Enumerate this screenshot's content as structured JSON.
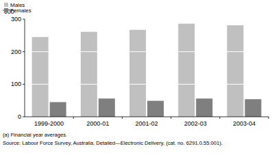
{
  "chart_data": {
    "type": "bar",
    "y_label": "'000",
    "categories": [
      "1999-2000",
      "2000-01",
      "2001-02",
      "2002-03",
      "2003-04"
    ],
    "series": [
      {
        "name": "Males",
        "color": "#c0c0c0",
        "values": [
          245,
          261,
          267,
          286,
          281
        ]
      },
      {
        "name": "Females",
        "color": "#7f7f7f",
        "values": [
          45,
          56,
          49,
          56,
          54
        ]
      }
    ],
    "ylim": [
      0,
      300
    ],
    "yticks": [
      0,
      100,
      200,
      300
    ],
    "grid": true,
    "legend": "top-left",
    "annotations": [
      "(a) Financial year averages.",
      "Source: Labour Force Survey, Australia, Detailed—Electronic Delivery, (cat. no. 6291.0.55.001)."
    ]
  }
}
